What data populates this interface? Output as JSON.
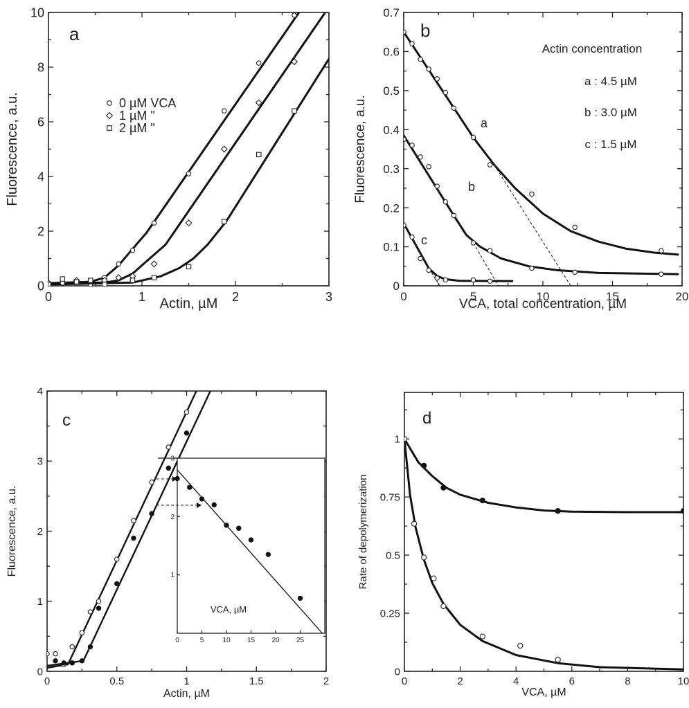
{
  "chart_data": [
    {
      "panel": "a",
      "type": "scatter",
      "xlabel": "Actin, µM",
      "ylabel": "Fluorescence, a.u.",
      "xlim": [
        0,
        3
      ],
      "ylim": [
        0,
        10
      ],
      "xticks": [
        "0",
        "1",
        "2",
        "3"
      ],
      "yticks": [
        "0",
        "2",
        "4",
        "6",
        "8",
        "10"
      ],
      "legend": [
        "0 µM  VCA",
        "1 µM     \"",
        "2 µM     \""
      ],
      "series": [
        {
          "name": "0 µM  VCA",
          "marker": "circle-open",
          "x": [
            0,
            0.15,
            0.3,
            0.45,
            0.6,
            0.75,
            0.9,
            1.13,
            1.5,
            1.88,
            2.25,
            2.63
          ],
          "y": [
            0.1,
            0.1,
            0.15,
            0.0,
            0.3,
            0.8,
            1.3,
            2.3,
            4.1,
            6.4,
            8.15,
            9.9
          ],
          "fit": [
            [
              0,
              0.1
            ],
            [
              0.45,
              0.15
            ],
            [
              0.6,
              0.3
            ],
            [
              0.75,
              0.75
            ],
            [
              0.9,
              1.35
            ],
            [
              1.05,
              1.95
            ],
            [
              2.68,
              10
            ]
          ]
        },
        {
          "name": "1 µM     \"",
          "marker": "diamond-open",
          "x": [
            0,
            0.3,
            0.6,
            0.75,
            0.9,
            1.13,
            1.5,
            1.88,
            2.25,
            2.63
          ],
          "y": [
            0.1,
            0.2,
            0.2,
            0.3,
            0.35,
            0.8,
            2.3,
            5.0,
            6.7,
            8.2
          ],
          "fit": [
            [
              0,
              0.1
            ],
            [
              0.6,
              0.12
            ],
            [
              0.75,
              0.2
            ],
            [
              0.9,
              0.45
            ],
            [
              1.0,
              0.75
            ],
            [
              1.1,
              1.05
            ],
            [
              1.25,
              1.5
            ],
            [
              2.96,
              10
            ]
          ]
        },
        {
          "name": "2 µM     \"",
          "marker": "square-open",
          "x": [
            0,
            0.15,
            0.3,
            0.45,
            0.6,
            0.9,
            1.13,
            1.5,
            1.88,
            2.25,
            2.63
          ],
          "y": [
            0.05,
            0.25,
            0.15,
            0.2,
            0.05,
            0.2,
            0.3,
            0.7,
            2.35,
            4.8,
            6.4
          ],
          "fit": [
            [
              0,
              0.05
            ],
            [
              0.9,
              0.12
            ],
            [
              1.2,
              0.35
            ],
            [
              1.4,
              0.65
            ],
            [
              1.55,
              1.0
            ],
            [
              1.7,
              1.5
            ],
            [
              1.9,
              2.35
            ],
            [
              3.0,
              8.3
            ]
          ]
        }
      ]
    },
    {
      "panel": "b",
      "type": "scatter",
      "xlabel": "VCA, total concentration, µM",
      "ylabel": "Fluorescence, a.u.",
      "xlim": [
        0,
        20
      ],
      "ylim": [
        0,
        0.7
      ],
      "xticks": [
        "0",
        "5",
        "10",
        "15",
        "20"
      ],
      "yticks": [
        "0",
        "0.1",
        "0.2",
        "0.3",
        "0.4",
        "0.5",
        "0.6",
        "0.7"
      ],
      "legend_title": "Actin concentration",
      "legend": [
        "a : 4.5 µM",
        "b : 3.0 µM",
        "c : 1.5 µM"
      ],
      "series": [
        {
          "name": "a",
          "marker": "circle-open",
          "x": [
            0,
            0.6,
            1.2,
            1.8,
            2.4,
            3.0,
            3.6,
            5.0,
            6.2,
            9.2,
            12.3,
            18.5
          ],
          "y": [
            0.65,
            0.62,
            0.58,
            0.555,
            0.53,
            0.495,
            0.455,
            0.38,
            0.31,
            0.235,
            0.15,
            0.09
          ],
          "fit": [
            [
              0,
              0.65
            ],
            [
              5,
              0.38
            ],
            [
              6.5,
              0.31
            ],
            [
              8,
              0.25
            ],
            [
              10,
              0.185
            ],
            [
              12,
              0.14
            ],
            [
              14,
              0.113
            ],
            [
              16,
              0.095
            ],
            [
              18,
              0.085
            ],
            [
              19.7,
              0.08
            ]
          ],
          "extrapolation": [
            [
              6.5,
              0.31
            ],
            [
              12,
              0
            ]
          ]
        },
        {
          "name": "b",
          "marker": "circle-open",
          "x": [
            0,
            0.6,
            1.2,
            1.8,
            2.4,
            3.0,
            3.6,
            5.0,
            6.2,
            9.2,
            12.3,
            18.5
          ],
          "y": [
            0.375,
            0.36,
            0.33,
            0.305,
            0.255,
            0.215,
            0.18,
            0.11,
            0.09,
            0.045,
            0.035,
            0.03
          ],
          "fit": [
            [
              0,
              0.385
            ],
            [
              3.6,
              0.18
            ],
            [
              4.5,
              0.13
            ],
            [
              5.5,
              0.1
            ],
            [
              7,
              0.07
            ],
            [
              9,
              0.05
            ],
            [
              11,
              0.04
            ],
            [
              14,
              0.033
            ],
            [
              19.7,
              0.03
            ]
          ],
          "extrapolation": [
            [
              5,
              0.11
            ],
            [
              6.8,
              0
            ]
          ]
        },
        {
          "name": "c",
          "marker": "circle-open",
          "x": [
            0,
            0.6,
            1.2,
            1.8,
            2.4,
            3.0,
            5.0,
            6.2
          ],
          "y": [
            0.155,
            0.125,
            0.07,
            0.04,
            0.02,
            0.015,
            0.015,
            0.012
          ],
          "fit": [
            [
              0,
              0.16
            ],
            [
              1.8,
              0.045
            ],
            [
              2.4,
              0.025
            ],
            [
              3,
              0.017
            ],
            [
              4,
              0.013
            ],
            [
              7.8,
              0.012
            ]
          ],
          "extrapolation": [
            [
              1.8,
              0.045
            ],
            [
              2.6,
              0
            ]
          ]
        }
      ],
      "annotations": [
        "a",
        "b",
        "c"
      ]
    },
    {
      "panel": "c",
      "type": "scatter",
      "xlabel": "Actin, µM",
      "ylabel": "Fluorescence, a.u.",
      "xlim": [
        0,
        2
      ],
      "ylim": [
        0,
        4
      ],
      "xticks": [
        "0",
        "0.5",
        "1",
        "1.5",
        "2"
      ],
      "yticks": [
        "0",
        "1",
        "2",
        "3",
        "4"
      ],
      "series": [
        {
          "name": "open",
          "marker": "circle-open",
          "x": [
            0,
            0.06,
            0.12,
            0.18,
            0.25,
            0.31,
            0.37,
            0.5,
            0.62,
            0.75,
            0.87,
            1.0
          ],
          "y": [
            0.25,
            0.25,
            0.1,
            0.35,
            0.55,
            0.85,
            1.0,
            1.6,
            2.15,
            2.7,
            3.2,
            3.7
          ],
          "fit": [
            [
              0,
              0.05
            ],
            [
              0.15,
              0.1
            ],
            [
              1.07,
              4.0
            ]
          ]
        },
        {
          "name": "filled",
          "marker": "circle-filled",
          "x": [
            0.06,
            0.12,
            0.18,
            0.25,
            0.31,
            0.37,
            0.5,
            0.62,
            0.75,
            0.87,
            1.0
          ],
          "y": [
            0.15,
            0.12,
            0.12,
            0.15,
            0.35,
            0.9,
            1.25,
            1.9,
            2.25,
            2.9,
            3.4
          ],
          "fit": [
            [
              0,
              0.08
            ],
            [
              0.26,
              0.15
            ],
            [
              1.17,
              4.0
            ]
          ]
        }
      ],
      "inset": {
        "xlabel": "VCA, µM",
        "xlim": [
          0,
          30
        ],
        "ylim": [
          0,
          3
        ],
        "xticks": [
          "0",
          "5",
          "10",
          "15",
          "20",
          "25"
        ],
        "yticks": [
          "1",
          "2",
          "3"
        ],
        "series": [
          {
            "name": "filled",
            "marker": "circle-filled",
            "x": [
              0,
              2.5,
              5,
              7.5,
              10,
              12.5,
              15,
              18.5,
              25
            ],
            "y": [
              2.65,
              2.5,
              2.3,
              2.2,
              1.85,
              1.8,
              1.6,
              1.35,
              0.6
            ],
            "fit": [
              [
                0,
                2.8
              ],
              [
                29.5,
                0
              ]
            ]
          }
        ]
      }
    },
    {
      "panel": "d",
      "type": "scatter",
      "xlabel": "VCA, µM",
      "ylabel": "Rate of depolymerization",
      "xlim": [
        0,
        10
      ],
      "ylim": [
        0,
        1.2
      ],
      "xticks": [
        "0",
        "2",
        "4",
        "6",
        "8",
        "10"
      ],
      "yticks": [
        "0",
        "0.25",
        "0.5",
        "0.75",
        "1"
      ],
      "series": [
        {
          "name": "filled",
          "marker": "circle-filled",
          "x": [
            0,
            0.7,
            1.4,
            2.8,
            5.5,
            10
          ],
          "y": [
            1.0,
            0.885,
            0.79,
            0.735,
            0.69,
            0.69
          ],
          "fit": [
            [
              0,
              1.0
            ],
            [
              0.5,
              0.9
            ],
            [
              1,
              0.84
            ],
            [
              1.5,
              0.79
            ],
            [
              2,
              0.76
            ],
            [
              3,
              0.725
            ],
            [
              4,
              0.705
            ],
            [
              5,
              0.692
            ],
            [
              6,
              0.687
            ],
            [
              8,
              0.685
            ],
            [
              10,
              0.685
            ]
          ]
        },
        {
          "name": "open",
          "marker": "circle-open",
          "x": [
            0,
            0.35,
            0.7,
            1.05,
            1.4,
            2.8,
            4.15,
            5.5
          ],
          "y": [
            1.0,
            0.635,
            0.49,
            0.4,
            0.28,
            0.15,
            0.11,
            0.05
          ],
          "fit": [
            [
              0,
              1.0
            ],
            [
              0.2,
              0.76
            ],
            [
              0.4,
              0.62
            ],
            [
              0.7,
              0.48
            ],
            [
              1,
              0.38
            ],
            [
              1.4,
              0.29
            ],
            [
              2,
              0.2
            ],
            [
              2.8,
              0.13
            ],
            [
              4,
              0.07
            ],
            [
              5.5,
              0.035
            ],
            [
              7,
              0.018
            ],
            [
              10,
              0.008
            ]
          ]
        }
      ]
    }
  ],
  "panel_labels": {
    "a": "a",
    "b": "b",
    "c": "c",
    "d": "d"
  }
}
